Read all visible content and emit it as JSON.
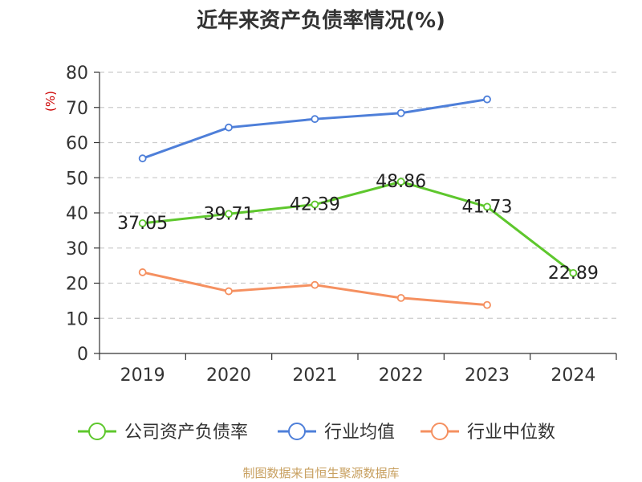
{
  "chart_data": {
    "type": "line",
    "title": "近年来资产负债率情况(%)",
    "ylabel": "(%)",
    "xlabel": "",
    "categories": [
      "2019",
      "2020",
      "2021",
      "2022",
      "2023",
      "2024"
    ],
    "ylim": [
      0,
      80
    ],
    "yticks": [
      0,
      10,
      20,
      30,
      40,
      50,
      60,
      70,
      80
    ],
    "grid": true,
    "legend_position": "bottom",
    "series": [
      {
        "name": "公司资产负债率",
        "color": "#5ec72d",
        "values": [
          37.05,
          39.71,
          42.39,
          48.86,
          41.73,
          22.89
        ],
        "labels": [
          "37.05",
          "39.71",
          "42.39",
          "48.86",
          "41.73",
          "22.89"
        ]
      },
      {
        "name": "行业均值",
        "color": "#4e7fd9",
        "values": [
          55.5,
          64.3,
          66.7,
          68.4,
          72.3,
          null
        ]
      },
      {
        "name": "行业中位数",
        "color": "#f59060",
        "values": [
          23.1,
          17.7,
          19.5,
          15.8,
          13.8,
          null
        ]
      }
    ]
  },
  "source_text": "制图数据来自恒生聚源数据库",
  "colors": {
    "axis": "#333333",
    "grid": "#cccccc",
    "ylabel": "#cc0000",
    "source": "#c8a060"
  }
}
